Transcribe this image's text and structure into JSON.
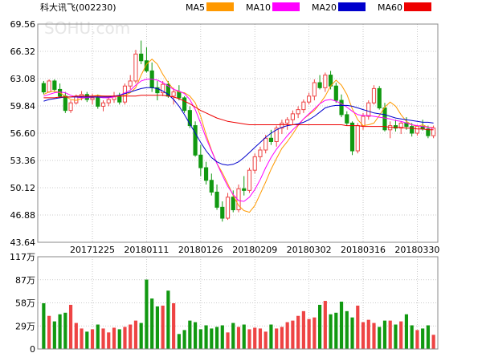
{
  "header": {
    "title": "科大讯飞(002230)",
    "legend": [
      {
        "label": "MA5",
        "color": "#ff9900"
      },
      {
        "label": "MA10",
        "color": "#ff00ff"
      },
      {
        "label": "MA20",
        "color": "#0000cc"
      },
      {
        "label": "MA60",
        "color": "#ee0000"
      }
    ]
  },
  "watermark": "SOHU.com",
  "colors": {
    "up": "#ee4444",
    "down": "#119911",
    "grid": "#bbbbbb",
    "frame": "#888888"
  },
  "chart_data": [
    {
      "type": "candlestick",
      "ylim": [
        43.64,
        69.56
      ],
      "y_ticks": [
        "69.56",
        "66.32",
        "63.08",
        "59.84",
        "56.60",
        "53.36",
        "50.12",
        "46.88",
        "43.64"
      ],
      "x_ticks": [
        "20171225",
        "20180111",
        "20180126",
        "20180209",
        "20180302",
        "20180316",
        "20180330"
      ],
      "x_tick_index": [
        9,
        19,
        29,
        39,
        49,
        59,
        69
      ],
      "series": [
        {
          "name": "MA5",
          "values": [
            61.2,
            61.5,
            61.6,
            61.4,
            61.0,
            60.6,
            60.5,
            60.7,
            60.9,
            61.0,
            61.1,
            61.0,
            60.9,
            60.9,
            61.0,
            61.1,
            61.4,
            62.0,
            63.5,
            64.8,
            65.4,
            64.8,
            63.6,
            62.6,
            61.8,
            61.5,
            61.4,
            61.0,
            60.2,
            58.6,
            56.4,
            54.6,
            53.0,
            51.9,
            50.6,
            49.2,
            48.0,
            47.4,
            47.2,
            48.0,
            49.4,
            50.8,
            52.3,
            53.6,
            54.8,
            55.6,
            56.5,
            57.5,
            58.3,
            58.8,
            59.3,
            60.1,
            61.0,
            62.2,
            62.9,
            62.3,
            61.2,
            59.5,
            58.2,
            57.5,
            57.6,
            57.8,
            58.7,
            59.7,
            60.3,
            59.8,
            58.8,
            58.0,
            57.6,
            57.4,
            57.6,
            57.3,
            57.3
          ]
        },
        {
          "name": "MA10",
          "values": [
            61.0,
            61.2,
            61.4,
            61.5,
            61.4,
            61.1,
            60.9,
            60.8,
            60.8,
            60.9,
            60.9,
            60.8,
            60.8,
            60.9,
            61.1,
            61.4,
            61.7,
            62.3,
            62.8,
            63.0,
            63.0,
            62.9,
            62.6,
            62.2,
            61.8,
            61.6,
            61.3,
            60.6,
            59.4,
            57.8,
            56.0,
            54.5,
            53.0,
            51.6,
            50.3,
            49.3,
            48.6,
            48.5,
            49.0,
            49.9,
            51.1,
            52.5,
            53.7,
            54.7,
            55.5,
            56.3,
            57.0,
            57.6,
            58.3,
            58.9,
            59.5,
            60.1,
            60.5,
            60.6,
            60.4,
            60.1,
            59.7,
            59.2,
            58.8,
            58.7,
            58.7,
            58.6,
            58.5,
            58.4,
            58.3,
            58.1,
            58.0,
            57.8,
            57.6,
            57.5,
            57.4,
            57.3,
            57.2
          ]
        },
        {
          "name": "MA20",
          "values": [
            60.4,
            60.6,
            60.7,
            60.8,
            60.9,
            60.9,
            60.9,
            60.9,
            60.9,
            60.9,
            60.9,
            60.9,
            60.9,
            61.0,
            61.1,
            61.3,
            61.5,
            61.7,
            61.9,
            62.0,
            62.0,
            61.9,
            61.6,
            61.2,
            60.6,
            59.8,
            58.8,
            57.7,
            56.6,
            55.5,
            54.5,
            53.7,
            53.2,
            52.9,
            52.8,
            52.9,
            53.2,
            53.7,
            54.3,
            54.9,
            55.5,
            56.1,
            56.6,
            57.0,
            57.3,
            57.5,
            57.6,
            57.7,
            57.9,
            58.2,
            58.6,
            59.1,
            59.6,
            59.8,
            59.9,
            59.9,
            59.9,
            59.8,
            59.6,
            59.4,
            59.2,
            59.0,
            58.9,
            58.8,
            58.6,
            58.4,
            58.3,
            58.2,
            58.1,
            58.0,
            57.9,
            57.9,
            57.8
          ]
        },
        {
          "name": "MA60",
          "values": [
            60.8,
            60.8,
            60.8,
            60.9,
            60.9,
            60.9,
            61.0,
            61.0,
            61.0,
            61.0,
            61.0,
            61.0,
            61.0,
            61.0,
            61.0,
            61.0,
            61.0,
            61.0,
            61.1,
            61.1,
            61.1,
            61.1,
            61.1,
            61.0,
            60.9,
            60.7,
            60.4,
            60.1,
            59.7,
            59.3,
            59.0,
            58.7,
            58.4,
            58.2,
            58.0,
            57.9,
            57.8,
            57.7,
            57.6,
            57.6,
            57.6,
            57.6,
            57.6,
            57.6,
            57.6,
            57.6,
            57.6,
            57.6,
            57.6,
            57.6,
            57.6,
            57.6,
            57.6,
            57.6,
            57.6,
            57.6,
            57.5,
            57.5,
            57.5,
            57.4,
            57.4,
            57.4,
            57.4,
            57.4,
            57.3,
            57.3,
            57.3,
            57.2,
            57.2,
            57.1,
            57.1,
            57.0,
            57.0
          ]
        }
      ],
      "ohlc": [
        [
          62.5,
          62.8,
          61.2,
          61.5
        ],
        [
          61.5,
          63.0,
          61.4,
          62.8
        ],
        [
          62.8,
          63.0,
          61.5,
          61.8
        ],
        [
          61.8,
          62.5,
          60.8,
          61.0
        ],
        [
          61.0,
          61.5,
          59.0,
          59.3
        ],
        [
          59.3,
          60.5,
          59.0,
          60.2
        ],
        [
          60.2,
          61.2,
          60.0,
          61.0
        ],
        [
          61.0,
          61.6,
          60.5,
          61.2
        ],
        [
          61.2,
          61.5,
          60.3,
          60.6
        ],
        [
          60.6,
          61.3,
          60.0,
          60.8
        ],
        [
          60.8,
          61.2,
          59.5,
          59.8
        ],
        [
          59.8,
          60.5,
          59.2,
          60.2
        ],
        [
          60.2,
          61.0,
          59.8,
          60.6
        ],
        [
          60.6,
          61.5,
          60.2,
          61.0
        ],
        [
          61.0,
          61.4,
          60.0,
          60.3
        ],
        [
          60.3,
          62.5,
          60.0,
          62.2
        ],
        [
          62.2,
          63.5,
          61.8,
          62.8
        ],
        [
          62.8,
          66.5,
          62.5,
          66.0
        ],
        [
          66.0,
          67.6,
          64.8,
          65.2
        ],
        [
          65.2,
          66.8,
          63.8,
          64.0
        ],
        [
          64.0,
          65.0,
          61.5,
          62.0
        ],
        [
          62.0,
          62.8,
          60.5,
          61.4
        ],
        [
          61.4,
          62.8,
          61.0,
          62.4
        ],
        [
          62.4,
          62.8,
          60.8,
          61.0
        ],
        [
          61.0,
          62.0,
          60.0,
          61.5
        ],
        [
          61.5,
          62.3,
          60.5,
          60.8
        ],
        [
          60.8,
          61.0,
          59.0,
          59.3
        ],
        [
          59.3,
          59.8,
          57.2,
          57.5
        ],
        [
          57.5,
          58.0,
          53.8,
          54.0
        ],
        [
          54.0,
          55.2,
          51.5,
          52.5
        ],
        [
          52.5,
          53.2,
          50.5,
          51.0
        ],
        [
          51.0,
          51.8,
          49.2,
          49.6
        ],
        [
          49.6,
          50.5,
          47.5,
          47.8
        ],
        [
          47.8,
          48.5,
          46.1,
          46.5
        ],
        [
          46.5,
          49.5,
          46.3,
          49.0
        ],
        [
          49.0,
          49.8,
          47.2,
          47.5
        ],
        [
          47.5,
          50.5,
          47.2,
          50.0
        ],
        [
          50.0,
          51.5,
          49.2,
          49.8
        ],
        [
          49.8,
          52.5,
          49.5,
          52.2
        ],
        [
          52.2,
          54.2,
          51.8,
          53.8
        ],
        [
          53.8,
          55.0,
          53.2,
          54.6
        ],
        [
          54.6,
          56.4,
          54.2,
          56.0
        ],
        [
          56.0,
          57.0,
          55.2,
          55.6
        ],
        [
          55.6,
          57.5,
          55.0,
          57.2
        ],
        [
          57.2,
          58.2,
          56.5,
          57.8
        ],
        [
          57.8,
          58.5,
          57.0,
          58.2
        ],
        [
          58.2,
          59.3,
          57.6,
          58.9
        ],
        [
          58.9,
          59.8,
          58.4,
          59.4
        ],
        [
          59.4,
          60.6,
          59.0,
          60.3
        ],
        [
          60.3,
          61.4,
          60.0,
          61.0
        ],
        [
          61.0,
          63.0,
          60.5,
          62.6
        ],
        [
          62.6,
          63.5,
          61.8,
          62.0
        ],
        [
          62.0,
          63.8,
          61.5,
          63.5
        ],
        [
          63.5,
          64.0,
          61.8,
          62.2
        ],
        [
          62.2,
          62.6,
          60.2,
          60.5
        ],
        [
          60.5,
          61.2,
          58.5,
          58.8
        ],
        [
          58.8,
          59.2,
          57.5,
          57.8
        ],
        [
          57.8,
          58.0,
          54.0,
          54.5
        ],
        [
          54.5,
          57.8,
          54.2,
          57.5
        ],
        [
          57.5,
          59.0,
          57.0,
          58.6
        ],
        [
          58.6,
          60.5,
          58.2,
          60.2
        ],
        [
          60.2,
          62.3,
          60.0,
          61.9
        ],
        [
          61.9,
          62.2,
          59.4,
          59.6
        ],
        [
          59.6,
          60.2,
          56.8,
          57.0
        ],
        [
          57.0,
          58.0,
          56.0,
          57.5
        ],
        [
          57.5,
          58.2,
          56.8,
          57.2
        ],
        [
          57.2,
          58.0,
          56.5,
          57.8
        ],
        [
          57.8,
          58.5,
          57.0,
          57.4
        ],
        [
          57.4,
          57.8,
          56.2,
          56.6
        ],
        [
          56.6,
          57.6,
          56.3,
          57.4
        ],
        [
          57.4,
          58.2,
          56.9,
          57.1
        ],
        [
          57.1,
          57.5,
          56.0,
          56.3
        ],
        [
          56.3,
          57.5,
          56.0,
          57.2
        ]
      ]
    },
    {
      "type": "bar",
      "ylim": [
        0,
        117
      ],
      "y_ticks": [
        "117万",
        "87万",
        "58万",
        "29万",
        "0"
      ],
      "values": [
        58,
        42,
        35,
        44,
        46,
        56,
        33,
        26,
        22,
        25,
        31,
        26,
        21,
        27,
        25,
        28,
        31,
        36,
        33,
        88,
        64,
        54,
        55,
        74,
        58,
        19,
        24,
        36,
        34,
        25,
        30,
        26,
        28,
        30,
        21,
        33,
        28,
        31,
        25,
        27,
        26,
        22,
        31,
        26,
        28,
        34,
        36,
        42,
        48,
        38,
        40,
        56,
        61,
        44,
        46,
        60,
        48,
        40,
        55,
        34,
        37,
        33,
        28,
        36,
        36,
        31,
        35,
        44,
        30,
        24,
        26,
        30,
        18
      ],
      "up_flags": [
        0,
        1,
        0,
        0,
        0,
        1,
        1,
        1,
        0,
        1,
        0,
        1,
        1,
        1,
        0,
        1,
        1,
        1,
        0,
        0,
        0,
        0,
        1,
        0,
        1,
        0,
        0,
        0,
        0,
        0,
        0,
        0,
        0,
        0,
        1,
        0,
        1,
        0,
        1,
        1,
        1,
        1,
        0,
        1,
        1,
        1,
        1,
        1,
        1,
        1,
        1,
        0,
        1,
        0,
        0,
        0,
        0,
        0,
        1,
        1,
        1,
        1,
        0,
        0,
        1,
        0,
        1,
        0,
        0,
        1,
        0,
        0,
        1
      ]
    }
  ]
}
